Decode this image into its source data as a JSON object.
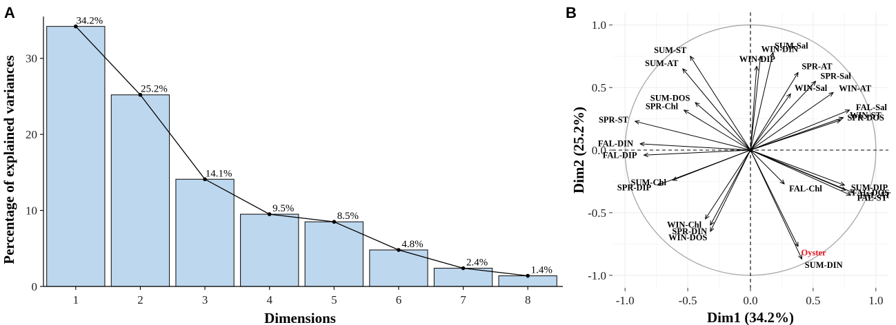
{
  "chart_data": [
    {
      "panel": "A",
      "type": "bar",
      "categories": [
        "1",
        "2",
        "3",
        "4",
        "5",
        "6",
        "7",
        "8"
      ],
      "values": [
        34.2,
        25.2,
        14.1,
        9.5,
        8.5,
        4.8,
        2.4,
        1.4
      ],
      "labels": [
        "34.2%",
        "25.2%",
        "14.1%",
        "9.5%",
        "8.5%",
        "4.8%",
        "2.4%",
        "1.4%"
      ],
      "line_overlay": true,
      "xlabel": "Dimensions",
      "ylabel": "Percentage of explained variances",
      "ylim": [
        0,
        35.5
      ],
      "yticks": [
        0,
        10,
        20,
        30
      ],
      "bar_color": "#bdd7ee",
      "bar_edge": "#1a1a1a"
    },
    {
      "panel": "B",
      "type": "scatter",
      "subtype": "pca-correlation-circle",
      "xlabel": "Dim1 (34.2%)",
      "ylabel": "Dim2 (25.2%)",
      "xlim": [
        -1.1,
        1.1
      ],
      "ylim": [
        -1.1,
        1.1
      ],
      "xticks": [
        -1.0,
        -0.5,
        0.0,
        0.5,
        1.0
      ],
      "yticks": [
        -1.0,
        -0.5,
        0.0,
        0.5,
        1.0
      ],
      "xtick_labels": [
        "-1.0",
        "-0.5",
        "0.0",
        "0.5",
        "1.0"
      ],
      "ytick_labels": [
        "-1.0",
        "-0.5",
        "0.0",
        "0.5",
        "1.0"
      ],
      "highlight_color": "#e8141c",
      "variables": [
        {
          "name": "WIN-DIN",
          "x": 0.08,
          "y": 0.75
        },
        {
          "name": "SUM-Sal",
          "x": 0.18,
          "y": 0.78
        },
        {
          "name": "WIN-DIP",
          "x": 0.05,
          "y": 0.67
        },
        {
          "name": "SUM-ST",
          "x": -0.48,
          "y": 0.75
        },
        {
          "name": "SUM-AT",
          "x": -0.54,
          "y": 0.65
        },
        {
          "name": "SPR-AT",
          "x": 0.38,
          "y": 0.62
        },
        {
          "name": "SPR-Sal",
          "x": 0.52,
          "y": 0.55
        },
        {
          "name": "WIN-Sal",
          "x": 0.32,
          "y": 0.45
        },
        {
          "name": "WIN-AT",
          "x": 0.66,
          "y": 0.46
        },
        {
          "name": "SUM-DOS",
          "x": -0.44,
          "y": 0.38
        },
        {
          "name": "FAL-Sal",
          "x": 0.79,
          "y": 0.32
        },
        {
          "name": "WIN-ST",
          "x": 0.74,
          "y": 0.26
        },
        {
          "name": "SPR-DOS",
          "x": 0.72,
          "y": 0.24
        },
        {
          "name": "SPR-ST",
          "x": -0.92,
          "y": 0.23
        },
        {
          "name": "SPR-Chl",
          "x": -0.53,
          "y": 0.32
        },
        {
          "name": "FAL-DIN",
          "x": -0.88,
          "y": 0.05
        },
        {
          "name": "FAL-DIP",
          "x": -0.85,
          "y": -0.04
        },
        {
          "name": "SUM-DIP",
          "x": 0.75,
          "y": -0.28
        },
        {
          "name": "FAL-DOS",
          "x": 0.76,
          "y": -0.32
        },
        {
          "name": "FAL-AT",
          "x": 0.82,
          "y": -0.34
        },
        {
          "name": "FAL-ST",
          "x": 0.8,
          "y": -0.36
        },
        {
          "name": "SPR-DIP",
          "x": -0.74,
          "y": -0.28
        },
        {
          "name": "SUM-Chl",
          "x": -0.62,
          "y": -0.24
        },
        {
          "name": "FAL-Chl",
          "x": 0.27,
          "y": -0.27
        },
        {
          "name": "WIN-Chl",
          "x": -0.36,
          "y": -0.55
        },
        {
          "name": "SPR-DIN",
          "x": -0.32,
          "y": -0.6
        },
        {
          "name": "WIN-DOS",
          "x": -0.32,
          "y": -0.65
        },
        {
          "name": "Oyster",
          "x": 0.38,
          "y": -0.77,
          "highlight": true
        },
        {
          "name": "SUM-DIN",
          "x": 0.41,
          "y": -0.87
        }
      ]
    }
  ]
}
